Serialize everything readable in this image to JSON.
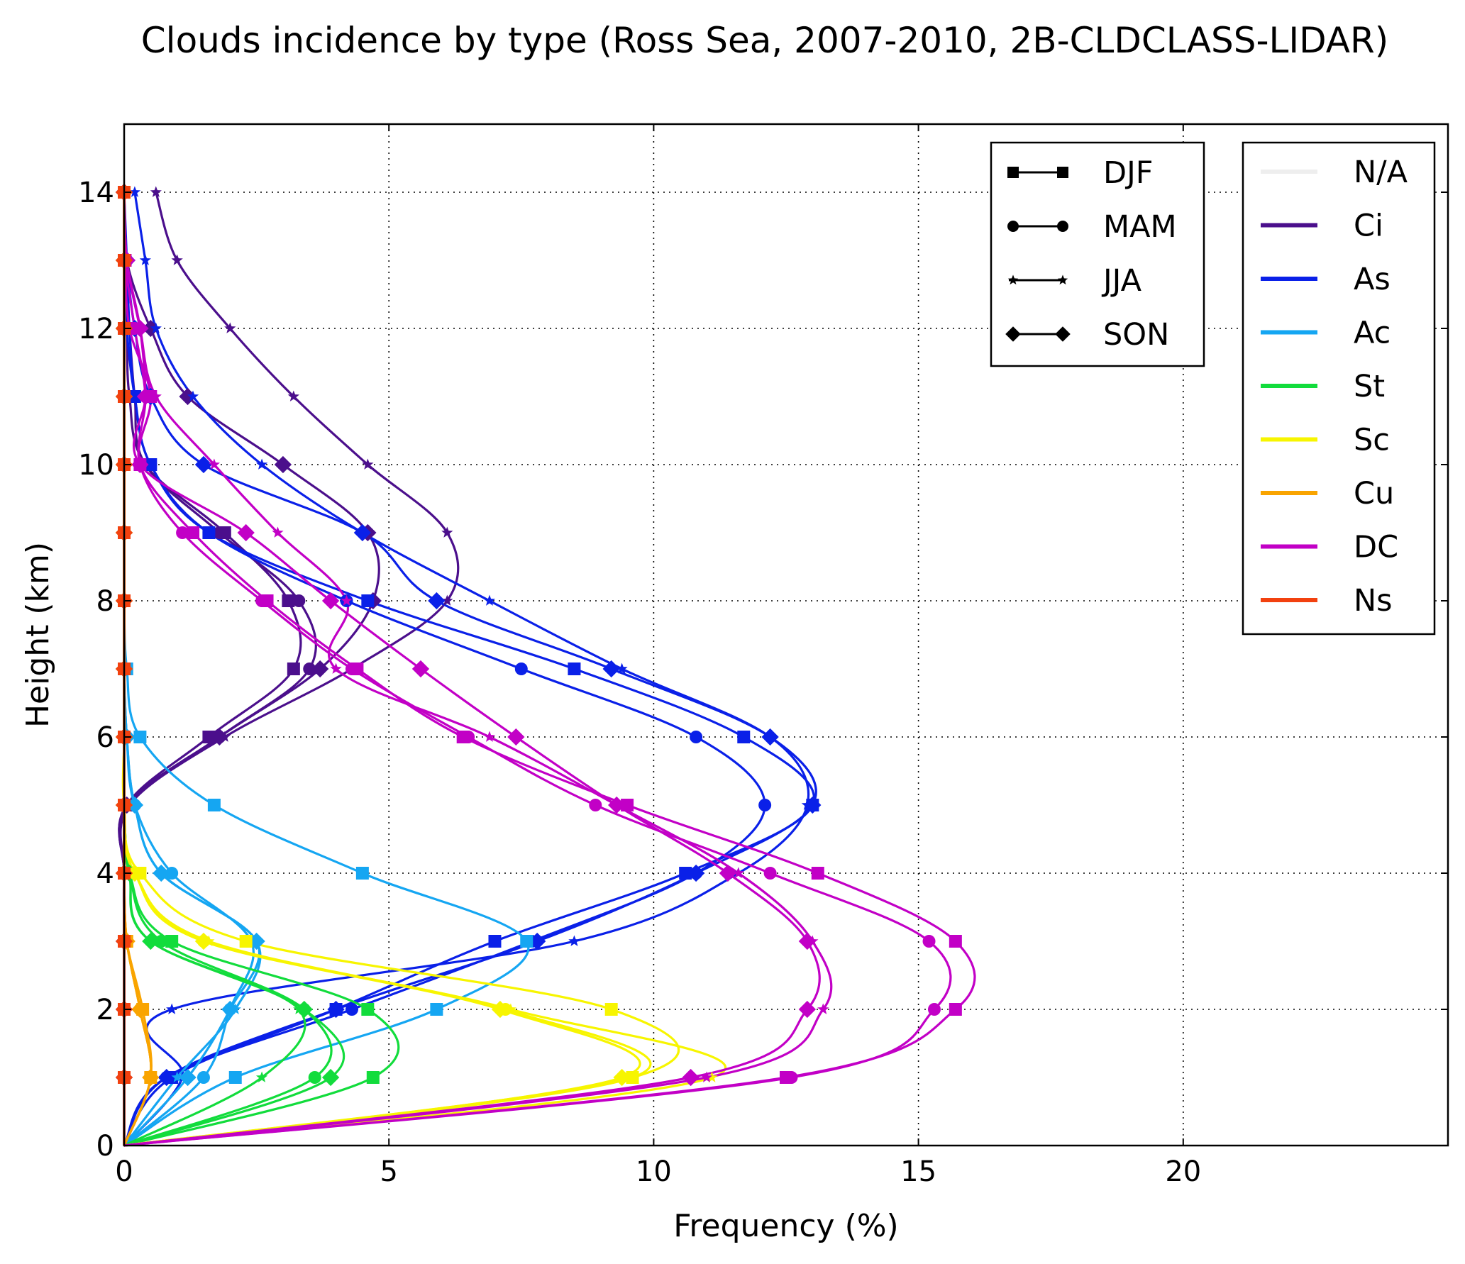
{
  "chart_data": {
    "type": "line",
    "title": "Clouds incidence by type (Ross Sea, 2007-2010, 2B-CLDCLASS-LIDAR)",
    "xlabel": "Frequency (%)",
    "ylabel": "Height (km)",
    "xlim": [
      0,
      25
    ],
    "ylim": [
      0,
      15
    ],
    "xticks": [
      0,
      5,
      10,
      15,
      20
    ],
    "yticks": [
      0,
      2,
      4,
      6,
      8,
      10,
      12,
      14
    ],
    "grid": true,
    "season_legend": {
      "placement": "top-right (inner)",
      "entries": [
        {
          "label": "DJF",
          "marker": "square"
        },
        {
          "label": "MAM",
          "marker": "circle"
        },
        {
          "label": "JJA",
          "marker": "star"
        },
        {
          "label": "SON",
          "marker": "diamond"
        }
      ]
    },
    "type_legend": {
      "placement": "top-right",
      "entries": [
        {
          "label": "N/A",
          "color": "#eeeeee"
        },
        {
          "label": "Ci",
          "color": "#4b0f8c"
        },
        {
          "label": "As",
          "color": "#0a20e8"
        },
        {
          "label": "Ac",
          "color": "#15a6f2"
        },
        {
          "label": "St",
          "color": "#12dc3c"
        },
        {
          "label": "Sc",
          "color": "#f7f500"
        },
        {
          "label": "Cu",
          "color": "#f9a400"
        },
        {
          "label": "DC",
          "color": "#c200c6"
        },
        {
          "label": "Ns",
          "color": "#f2410f"
        }
      ]
    },
    "marker_heights": [
      0,
      1,
      2,
      3,
      4,
      5,
      6,
      7,
      8,
      9,
      10,
      11,
      12,
      13,
      14
    ],
    "series": [
      {
        "type": "Ci",
        "season": "DJF",
        "x": [
          0,
          0,
          0,
          0,
          0,
          0.05,
          1.6,
          3.2,
          3.1,
          1.9,
          0.4,
          0.1,
          0.05,
          0.01,
          0
        ]
      },
      {
        "type": "Ci",
        "season": "MAM",
        "x": [
          0,
          0,
          0,
          0,
          0,
          0.05,
          1.8,
          3.5,
          3.3,
          1.8,
          0.4,
          0.2,
          0.1,
          0.02,
          0
        ]
      },
      {
        "type": "Ci",
        "season": "JJA",
        "x": [
          0,
          0,
          0,
          0,
          0,
          0.1,
          1.9,
          4.3,
          6.1,
          6.1,
          4.6,
          3.2,
          2.0,
          1.0,
          0.6
        ]
      },
      {
        "type": "Ci",
        "season": "SON",
        "x": [
          0,
          0,
          0,
          0,
          0,
          0.05,
          1.8,
          3.7,
          4.7,
          4.6,
          3.0,
          1.2,
          0.5,
          0.05,
          0
        ]
      },
      {
        "type": "As",
        "season": "DJF",
        "x": [
          0,
          0.9,
          4.0,
          7.0,
          10.6,
          13.0,
          11.7,
          8.5,
          4.6,
          1.6,
          0.5,
          0.2,
          0.05,
          0.02,
          0
        ]
      },
      {
        "type": "As",
        "season": "MAM",
        "x": [
          0,
          0.8,
          4.3,
          7.7,
          10.8,
          12.1,
          10.8,
          7.5,
          4.2,
          1.6,
          0.5,
          0.2,
          0.1,
          0.05,
          0
        ]
      },
      {
        "type": "As",
        "season": "JJA",
        "x": [
          0,
          1.1,
          0.9,
          8.5,
          11.6,
          12.9,
          12.2,
          9.4,
          6.9,
          4.5,
          2.6,
          1.3,
          0.6,
          0.4,
          0.2
        ]
      },
      {
        "type": "As",
        "season": "SON",
        "x": [
          0,
          0.8,
          4.0,
          7.8,
          10.8,
          13.0,
          12.2,
          9.2,
          5.9,
          4.5,
          1.5,
          0.5,
          0.2,
          0.05,
          0
        ]
      },
      {
        "type": "Ac",
        "season": "DJF",
        "x": [
          0,
          2.1,
          5.9,
          7.6,
          4.5,
          1.7,
          0.3,
          0.05,
          0,
          0,
          0,
          0,
          0,
          0,
          0
        ]
      },
      {
        "type": "Ac",
        "season": "MAM",
        "x": [
          0,
          1.5,
          2.0,
          2.4,
          0.9,
          0.2,
          0.05,
          0,
          0,
          0,
          0,
          0,
          0,
          0,
          0
        ]
      },
      {
        "type": "Ac",
        "season": "JJA",
        "x": [
          0,
          1.0,
          2.1,
          2.5,
          0.7,
          0.2,
          0.05,
          0,
          0,
          0,
          0,
          0,
          0,
          0,
          0
        ]
      },
      {
        "type": "Ac",
        "season": "SON",
        "x": [
          0,
          1.2,
          2.0,
          2.5,
          0.7,
          0.2,
          0.05,
          0,
          0,
          0,
          0,
          0,
          0,
          0,
          0
        ]
      },
      {
        "type": "St",
        "season": "DJF",
        "x": [
          0,
          4.7,
          4.6,
          0.9,
          0.1,
          0,
          0,
          0,
          0,
          0,
          0,
          0,
          0,
          0,
          0
        ]
      },
      {
        "type": "St",
        "season": "MAM",
        "x": [
          0,
          3.6,
          3.4,
          0.7,
          0.1,
          0,
          0,
          0,
          0,
          0,
          0,
          0,
          0,
          0,
          0
        ]
      },
      {
        "type": "St",
        "season": "JJA",
        "x": [
          0,
          2.6,
          3.3,
          0.5,
          0.1,
          0,
          0,
          0,
          0,
          0,
          0,
          0,
          0,
          0,
          0
        ]
      },
      {
        "type": "St",
        "season": "SON",
        "x": [
          0,
          3.9,
          3.4,
          0.5,
          0.1,
          0,
          0,
          0,
          0,
          0,
          0,
          0,
          0,
          0,
          0
        ]
      },
      {
        "type": "Sc",
        "season": "DJF",
        "x": [
          0,
          9.6,
          9.2,
          2.3,
          0.3,
          0,
          0,
          0,
          0,
          0,
          0,
          0,
          0,
          0,
          0
        ]
      },
      {
        "type": "Sc",
        "season": "MAM",
        "x": [
          0,
          9.6,
          7.2,
          1.5,
          0.2,
          0,
          0,
          0,
          0,
          0,
          0,
          0,
          0,
          0,
          0
        ]
      },
      {
        "type": "Sc",
        "season": "JJA",
        "x": [
          0,
          11.1,
          7.3,
          1.6,
          0.2,
          0,
          0,
          0,
          0,
          0,
          0,
          0,
          0,
          0,
          0
        ]
      },
      {
        "type": "Sc",
        "season": "SON",
        "x": [
          0,
          9.4,
          7.1,
          1.5,
          0.2,
          0,
          0,
          0,
          0,
          0,
          0,
          0,
          0,
          0,
          0
        ]
      },
      {
        "type": "Cu",
        "season": "DJF",
        "x": [
          0,
          0.5,
          0.35,
          0.05,
          0,
          0,
          0,
          0,
          0,
          0,
          0,
          0,
          0,
          0,
          0
        ]
      },
      {
        "type": "Cu",
        "season": "MAM",
        "x": [
          0,
          0.5,
          0.3,
          0.05,
          0,
          0,
          0,
          0,
          0,
          0,
          0,
          0,
          0,
          0,
          0
        ]
      },
      {
        "type": "Cu",
        "season": "JJA",
        "x": [
          0,
          0.5,
          0.3,
          0.05,
          0,
          0,
          0,
          0,
          0,
          0,
          0,
          0,
          0,
          0,
          0
        ]
      },
      {
        "type": "Cu",
        "season": "SON",
        "x": [
          0,
          0.5,
          0.3,
          0.05,
          0,
          0,
          0,
          0,
          0,
          0,
          0,
          0,
          0,
          0,
          0
        ]
      },
      {
        "type": "DC",
        "season": "DJF",
        "x": [
          0,
          12.5,
          15.7,
          15.7,
          13.1,
          9.5,
          6.4,
          4.4,
          2.7,
          1.3,
          0.3,
          0.5,
          0.1,
          0.02,
          0
        ]
      },
      {
        "type": "DC",
        "season": "MAM",
        "x": [
          0,
          12.6,
          15.3,
          15.2,
          12.2,
          8.9,
          6.5,
          4.3,
          2.6,
          1.1,
          0.3,
          0.4,
          0.2,
          0.02,
          0
        ]
      },
      {
        "type": "DC",
        "season": "JJA",
        "x": [
          0,
          11.0,
          13.2,
          13.0,
          11.6,
          9.3,
          6.9,
          4.0,
          4.2,
          2.9,
          1.7,
          0.6,
          0.3,
          0.05,
          0
        ]
      },
      {
        "type": "DC",
        "season": "SON",
        "x": [
          0,
          10.7,
          12.9,
          12.9,
          11.4,
          9.3,
          7.4,
          5.6,
          3.9,
          2.3,
          0.3,
          0.4,
          0.3,
          0.05,
          0
        ]
      },
      {
        "type": "Ns",
        "season": "DJF",
        "x": [
          0,
          0,
          0,
          0,
          0,
          0,
          0,
          0,
          0,
          0,
          0,
          0,
          0,
          0,
          0
        ]
      },
      {
        "type": "Ns",
        "season": "MAM",
        "x": [
          0,
          0,
          0,
          0,
          0,
          0,
          0,
          0,
          0,
          0,
          0,
          0,
          0,
          0,
          0
        ]
      },
      {
        "type": "Ns",
        "season": "JJA",
        "x": [
          0,
          0,
          0,
          0,
          0,
          0,
          0,
          0,
          0,
          0,
          0,
          0,
          0,
          0,
          0
        ]
      },
      {
        "type": "Ns",
        "season": "SON",
        "x": [
          0,
          0,
          0,
          0,
          0,
          0,
          0,
          0,
          0,
          0,
          0,
          0,
          0,
          0,
          0
        ]
      }
    ]
  }
}
